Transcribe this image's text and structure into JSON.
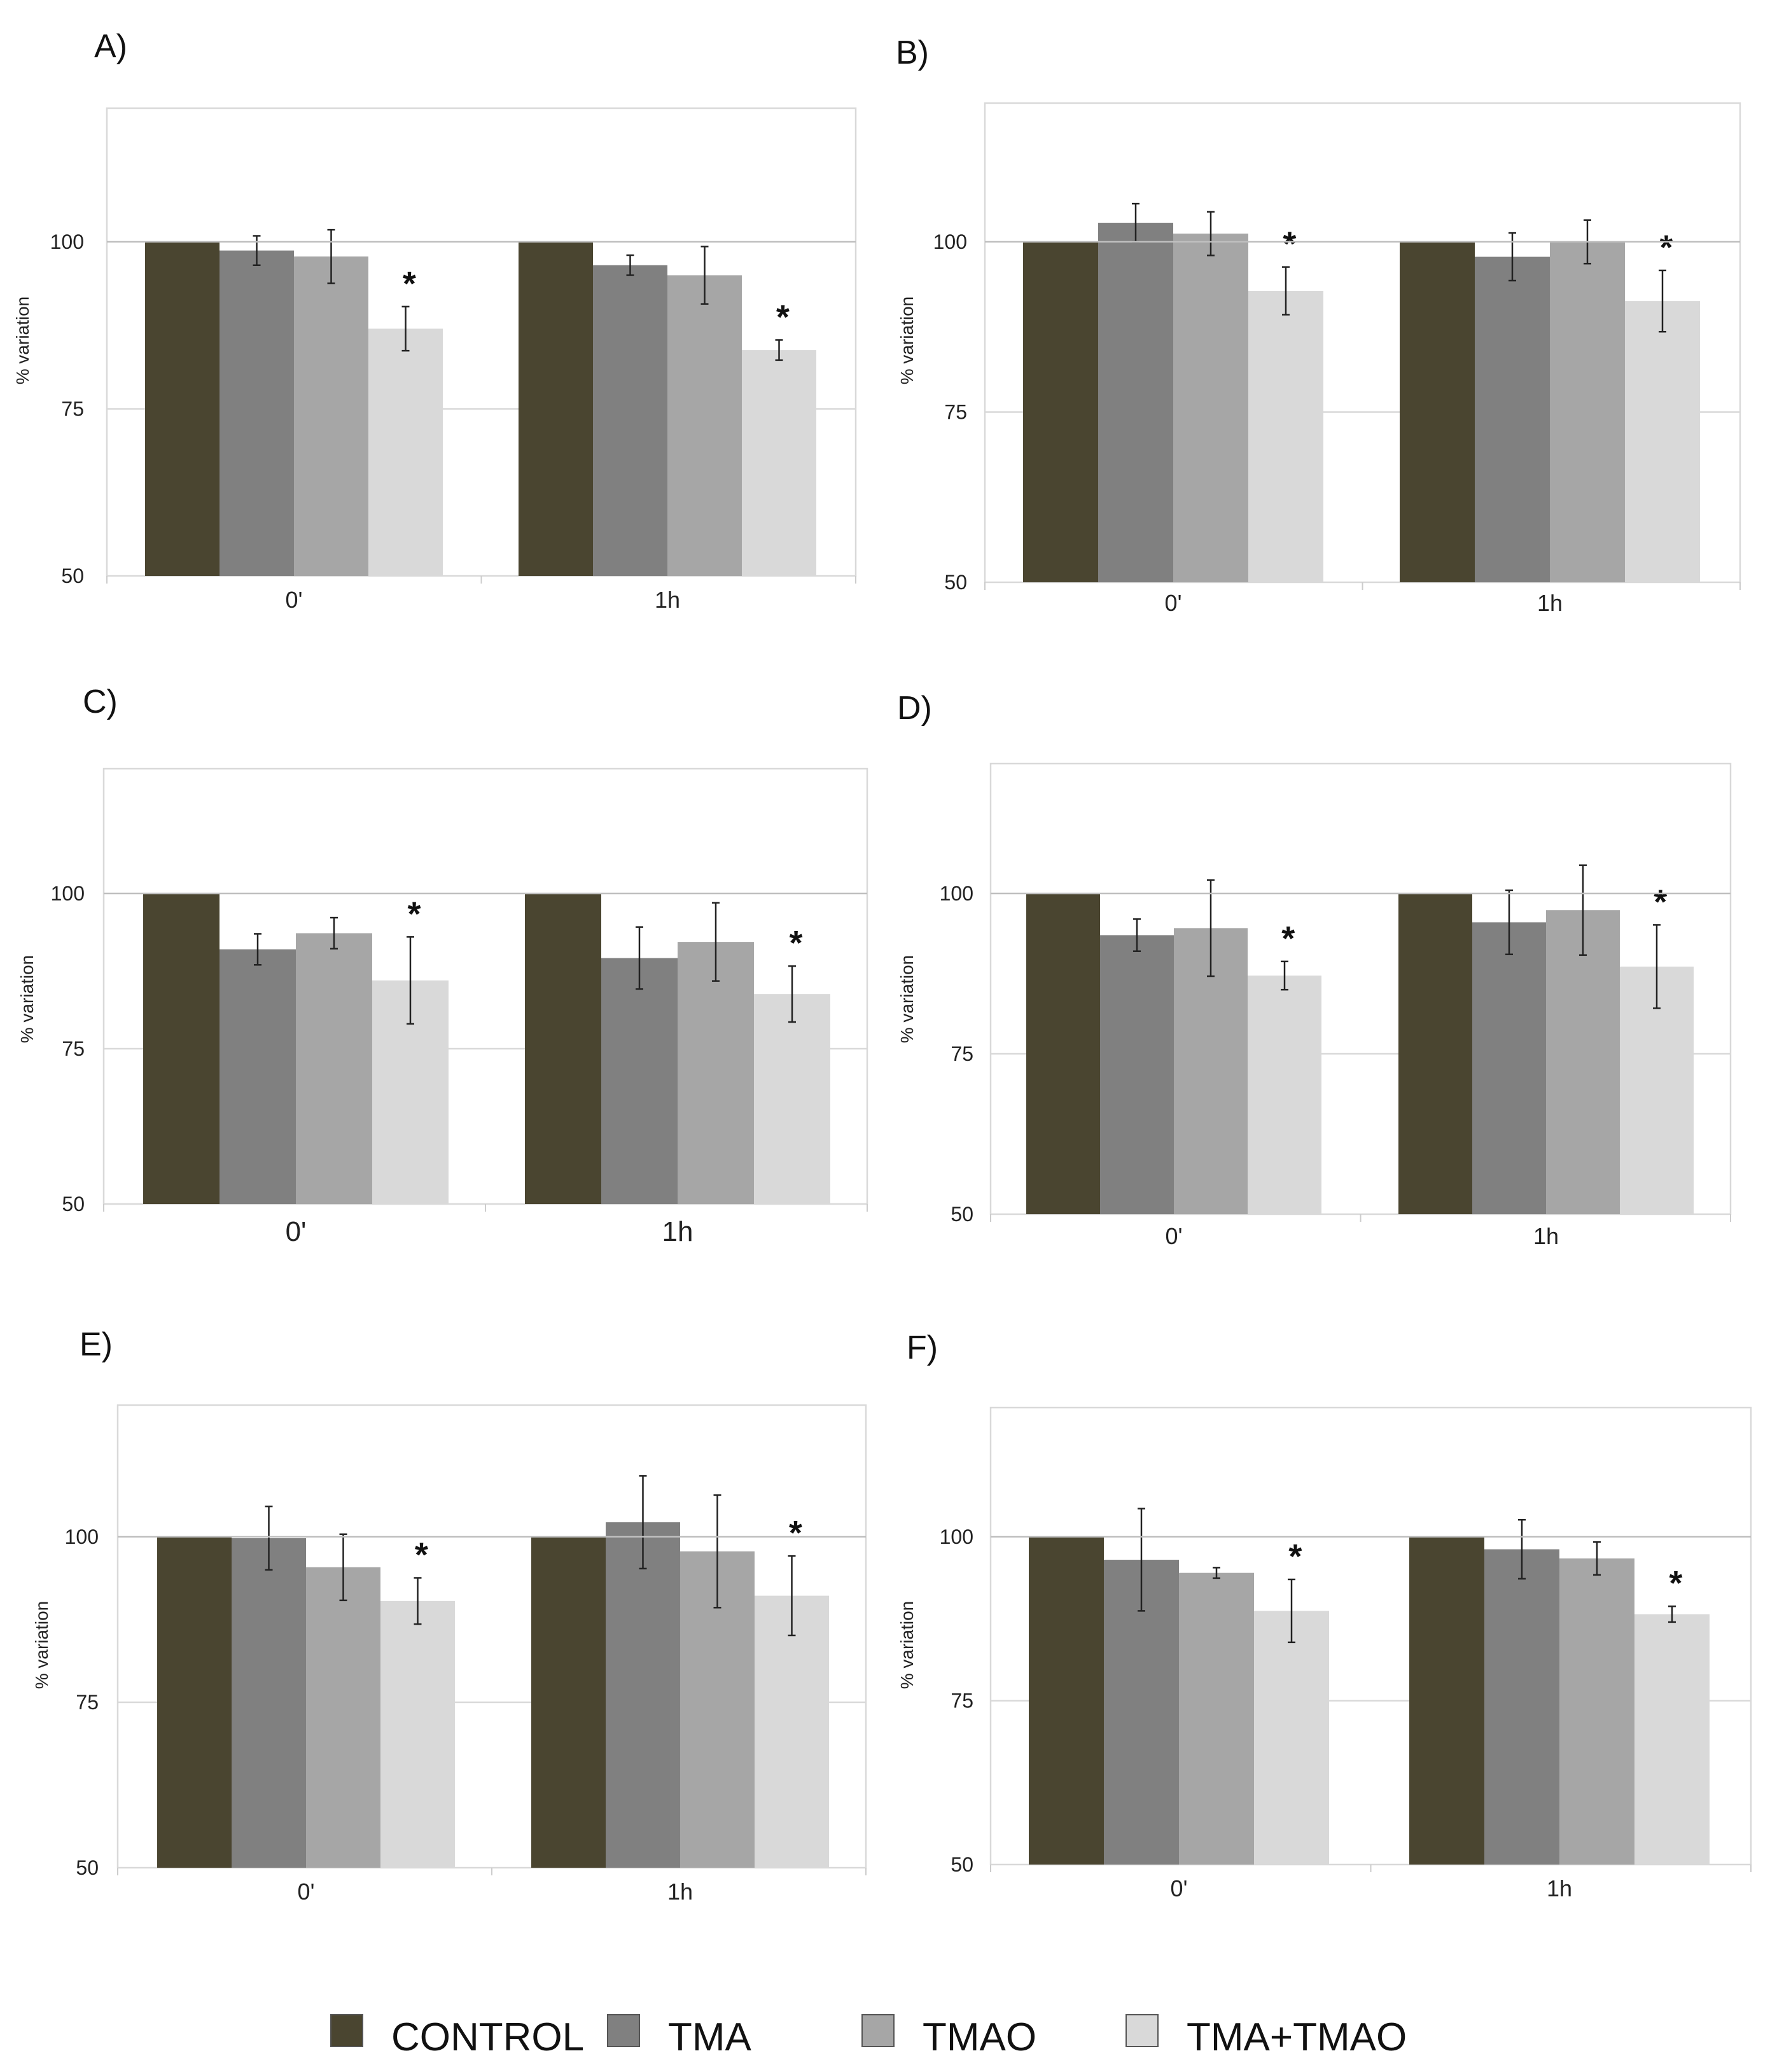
{
  "legend": [
    {
      "label": "CONTROL",
      "color": "#4a4530"
    },
    {
      "label": "TMA",
      "color": "#808080"
    },
    {
      "label": "TMAO",
      "color": "#a6a6a6"
    },
    {
      "label": "TMA+TMAO",
      "color": "#d9d9d9"
    }
  ],
  "chart_data": [
    {
      "panel": "A)",
      "type": "bar",
      "ylabel": "% variation",
      "yticks": [
        "50",
        "75",
        "100"
      ],
      "ylim": [
        50,
        120
      ],
      "categories": [
        "0'",
        "1h"
      ],
      "series": [
        {
          "name": "CONTROL",
          "values": [
            100,
            100
          ],
          "errors": [
            0,
            0
          ]
        },
        {
          "name": "TMA",
          "values": [
            98.7,
            96.5
          ],
          "errors": [
            2.2,
            1.5
          ]
        },
        {
          "name": "TMAO",
          "values": [
            97.8,
            95
          ],
          "errors": [
            4,
            4.3
          ]
        },
        {
          "name": "TMA+TMAO",
          "values": [
            87,
            83.8
          ],
          "errors": [
            3.3,
            1.5
          ]
        }
      ],
      "significance": [
        "*",
        "*"
      ]
    },
    {
      "panel": "B)",
      "type": "bar",
      "ylabel": "% variation",
      "yticks": [
        "50",
        "75",
        "100"
      ],
      "ylim": [
        50,
        120
      ],
      "categories": [
        "0'",
        "1h"
      ],
      "series": [
        {
          "name": "CONTROL",
          "values": [
            100,
            100
          ],
          "errors": [
            0,
            0
          ]
        },
        {
          "name": "TMA",
          "values": [
            102.8,
            97.8
          ],
          "errors": [
            2.8,
            3.5
          ]
        },
        {
          "name": "TMAO",
          "values": [
            101.2,
            100
          ],
          "errors": [
            3.2,
            3.2
          ]
        },
        {
          "name": "TMA+TMAO",
          "values": [
            92.8,
            91.3
          ],
          "errors": [
            3.5,
            4.5
          ]
        }
      ],
      "significance": [
        "*",
        "*"
      ]
    },
    {
      "panel": "C)",
      "type": "bar",
      "ylabel": "% variation",
      "yticks": [
        "50",
        "75",
        "100"
      ],
      "ylim": [
        50,
        120
      ],
      "categories": [
        "0'",
        "1h"
      ],
      "series": [
        {
          "name": "CONTROL",
          "values": [
            100,
            100
          ],
          "errors": [
            0,
            0
          ]
        },
        {
          "name": "TMA",
          "values": [
            91,
            89.6
          ],
          "errors": [
            2.5,
            5
          ]
        },
        {
          "name": "TMAO",
          "values": [
            93.6,
            92.2
          ],
          "errors": [
            2.5,
            6.3
          ]
        },
        {
          "name": "TMA+TMAO",
          "values": [
            86,
            83.8
          ],
          "errors": [
            7,
            4.5
          ]
        }
      ],
      "significance": [
        "*",
        "*"
      ]
    },
    {
      "panel": "D)",
      "type": "bar",
      "ylabel": "% variation",
      "yticks": [
        "50",
        "75",
        "100"
      ],
      "ylim": [
        50,
        120
      ],
      "categories": [
        "0'",
        "1h"
      ],
      "series": [
        {
          "name": "CONTROL",
          "values": [
            100,
            100
          ],
          "errors": [
            0,
            0
          ]
        },
        {
          "name": "TMA",
          "values": [
            93.5,
            95.5
          ],
          "errors": [
            2.5,
            5
          ]
        },
        {
          "name": "TMAO",
          "values": [
            94.6,
            97.4
          ],
          "errors": [
            7.5,
            7
          ]
        },
        {
          "name": "TMA+TMAO",
          "values": [
            87.2,
            88.6
          ],
          "errors": [
            2.2,
            6.5
          ]
        }
      ],
      "significance": [
        "*",
        "*"
      ]
    },
    {
      "panel": "E)",
      "type": "bar",
      "ylabel": "% variation",
      "yticks": [
        "50",
        "75",
        "100"
      ],
      "ylim": [
        50,
        120
      ],
      "categories": [
        "0'",
        "1h"
      ],
      "series": [
        {
          "name": "CONTROL",
          "values": [
            100,
            100
          ],
          "errors": [
            0,
            0
          ]
        },
        {
          "name": "TMA",
          "values": [
            99.8,
            102.2
          ],
          "errors": [
            4.8,
            7
          ]
        },
        {
          "name": "TMAO",
          "values": [
            95.4,
            97.8
          ],
          "errors": [
            5,
            8.5
          ]
        },
        {
          "name": "TMA+TMAO",
          "values": [
            90.3,
            91.1
          ],
          "errors": [
            3.5,
            6
          ]
        }
      ],
      "significance": [
        "*",
        "*"
      ]
    },
    {
      "panel": "F)",
      "type": "bar",
      "ylabel": "% variation",
      "yticks": [
        "50",
        "75",
        "100"
      ],
      "ylim": [
        50,
        120
      ],
      "categories": [
        "0'",
        "1h"
      ],
      "series": [
        {
          "name": "CONTROL",
          "values": [
            100,
            100
          ],
          "errors": [
            0,
            0
          ]
        },
        {
          "name": "TMA",
          "values": [
            96.5,
            98.1
          ],
          "errors": [
            7.8,
            4.5
          ]
        },
        {
          "name": "TMAO",
          "values": [
            94.5,
            96.7
          ],
          "errors": [
            0.8,
            2.5
          ]
        },
        {
          "name": "TMA+TMAO",
          "values": [
            88.7,
            88.2
          ],
          "errors": [
            4.8,
            1.2
          ]
        }
      ],
      "significance": [
        "*",
        "*"
      ]
    }
  ]
}
